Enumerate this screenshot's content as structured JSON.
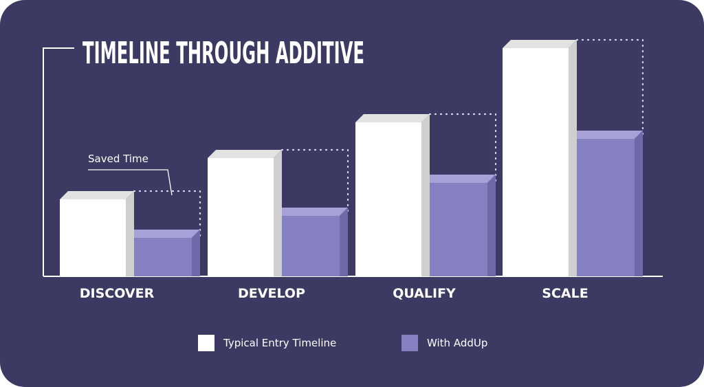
{
  "chart_data": {
    "type": "bar",
    "title": "TIMELINE THROUGH ADDITIVE",
    "categories": [
      "DISCOVER",
      "DEVELOP",
      "QUALIFY",
      "SCALE"
    ],
    "series": [
      {
        "name": "Typical Entry Timeline",
        "color": "#ffffff",
        "values": [
          28,
          43,
          56,
          83
        ]
      },
      {
        "name": "With AddUp",
        "color": "#8480c2",
        "values": [
          14,
          22,
          34,
          50
        ]
      }
    ],
    "annotation": "Saved Time",
    "ylim": [
      0,
      100
    ],
    "grid": false,
    "legend_position": "bottom"
  }
}
